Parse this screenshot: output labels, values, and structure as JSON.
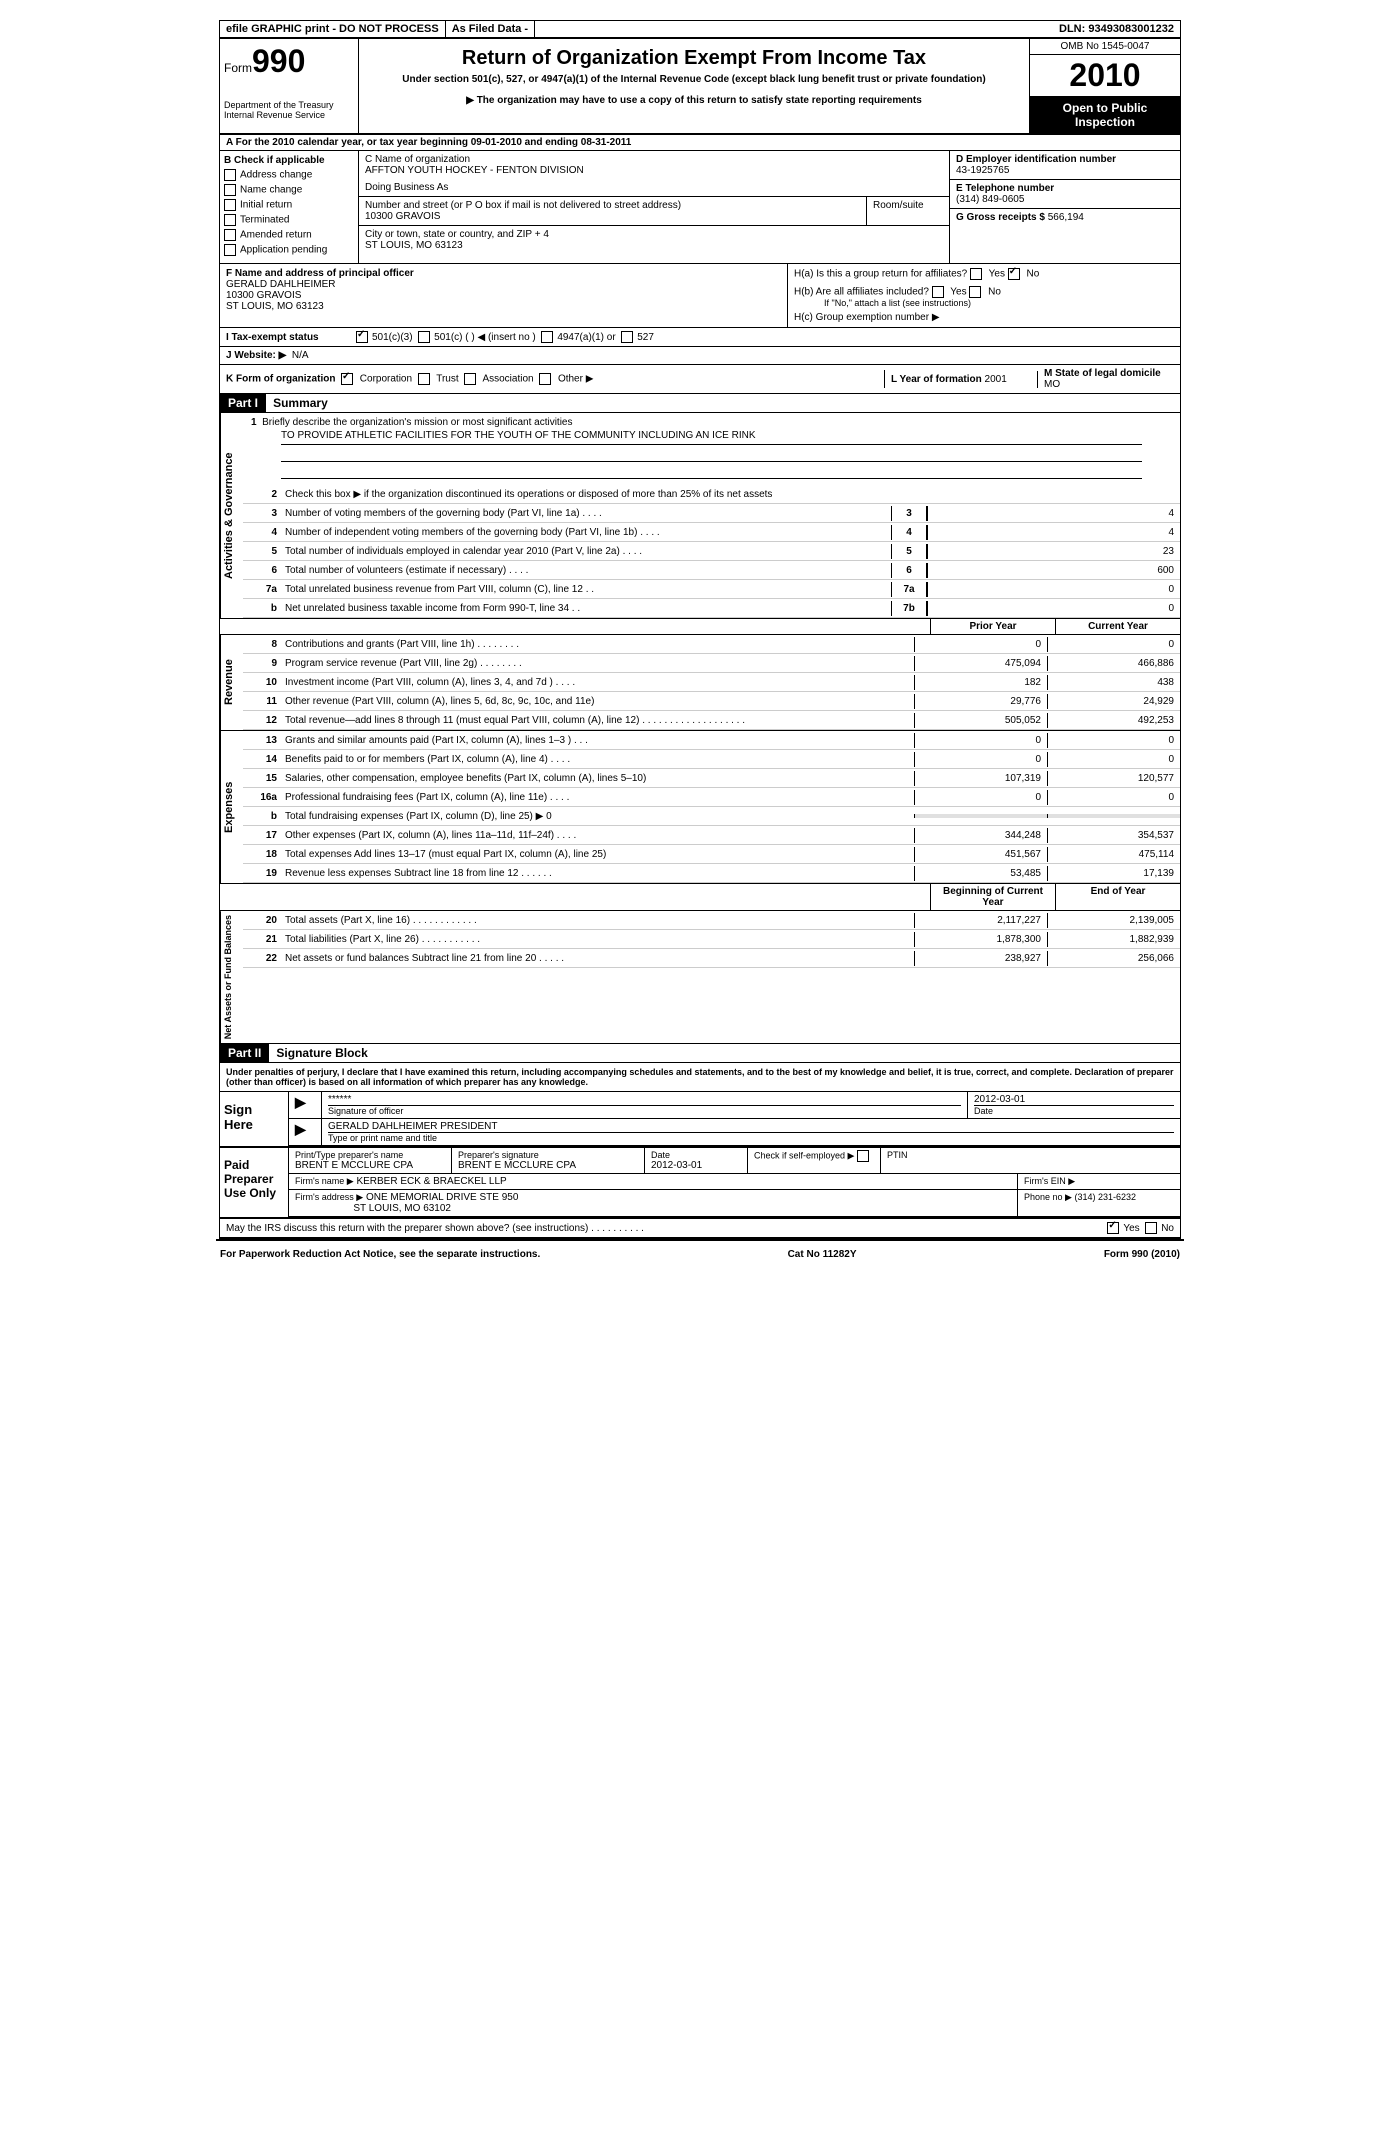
{
  "topbar": {
    "efile": "efile GRAPHIC print - DO NOT PROCESS",
    "asfiled": "As Filed Data -",
    "dln_label": "DLN:",
    "dln": "93493083001232"
  },
  "header": {
    "form_word": "Form",
    "form_num": "990",
    "dept1": "Department of the Treasury",
    "dept2": "Internal Revenue Service",
    "title": "Return of Organization Exempt From Income Tax",
    "subtitle1": "Under section 501(c), 527, or 4947(a)(1) of the Internal Revenue Code (except black lung benefit trust or private foundation)",
    "subtitle2": "▶ The organization may have to use a copy of this return to satisfy state reporting requirements",
    "omb": "OMB No 1545-0047",
    "year": "2010",
    "inspection": "Open to Public Inspection"
  },
  "section_a": "A  For the 2010 calendar year, or tax year beginning 09-01-2010    and ending 08-31-2011",
  "col_b": {
    "header": "B Check if applicable",
    "items": [
      "Address change",
      "Name change",
      "Initial return",
      "Terminated",
      "Amended return",
      "Application pending"
    ]
  },
  "col_c": {
    "name_label": "C Name of organization",
    "name": "AFFTON YOUTH HOCKEY - FENTON DIVISION",
    "dba_label": "Doing Business As",
    "dba": "",
    "street_label": "Number and street (or P O  box if mail is not delivered to street address)",
    "street": "10300 GRAVOIS",
    "room_label": "Room/suite",
    "city_label": "City or town, state or country, and ZIP + 4",
    "city": "ST LOUIS, MO  63123"
  },
  "col_d": {
    "ein_label": "D Employer identification number",
    "ein": "43-1925765",
    "tel_label": "E Telephone number",
    "tel": "(314) 849-0605",
    "gross_label": "G Gross receipts $",
    "gross": "566,194"
  },
  "f_block": {
    "label": "F   Name and address of principal officer",
    "name": "GERALD DAHLHEIMER",
    "street": "10300 GRAVOIS",
    "city": "ST LOUIS, MO  63123"
  },
  "h_block": {
    "ha": "H(a)  Is this a group return for affiliates?",
    "hb": "H(b)  Are all affiliates included?",
    "hb_note": "If \"No,\" attach a list  (see instructions)",
    "hc": "H(c)   Group exemption number ▶",
    "yes": "Yes",
    "no": "No"
  },
  "i_row": {
    "label": "I   Tax-exempt status",
    "opts": [
      "501(c)(3)",
      "501(c) (  ) ◀ (insert no )",
      "4947(a)(1) or",
      "527"
    ]
  },
  "j_row": {
    "label": "J  Website: ▶",
    "val": "N/A"
  },
  "k_row": {
    "label": "K Form of organization",
    "opts": [
      "Corporation",
      "Trust",
      "Association",
      "Other ▶"
    ],
    "l_label": "L Year of formation",
    "l_val": "2001",
    "m_label": "M State of legal domicile",
    "m_val": "MO"
  },
  "part1": {
    "header": "Part I",
    "title": "Summary",
    "vert_labels": [
      "Activities & Governance",
      "Revenue",
      "Expenses",
      "Net Assets or Fund Balances"
    ],
    "line1_label": "Briefly describe the organization's mission or most significant activities",
    "line1_val": "TO PROVIDE ATHLETIC FACILITIES FOR THE YOUTH OF THE COMMUNITY INCLUDING AN ICE RINK",
    "line2": "Check this box ▶     if the organization discontinued its operations or disposed of more than 25% of its net assets",
    "gov_lines": [
      {
        "n": "3",
        "d": "Number of voting members of the governing body (Part VI, line 1a)  .   .   .   .",
        "b": "3",
        "v": "4"
      },
      {
        "n": "4",
        "d": "Number of independent voting members of the governing body (Part VI, line 1b)  .   .   .   .",
        "b": "4",
        "v": "4"
      },
      {
        "n": "5",
        "d": "Total number of individuals employed in calendar year 2010 (Part V, line 2a)  .   .   .   .",
        "b": "5",
        "v": "23"
      },
      {
        "n": "6",
        "d": "Total number of volunteers (estimate if necessary)  .   .   .   .",
        "b": "6",
        "v": "600"
      },
      {
        "n": "7a",
        "d": "Total unrelated business revenue from Part VIII, column (C), line 12  .   .",
        "b": "7a",
        "v": "0"
      },
      {
        "n": "b",
        "d": "Net unrelated business taxable income from Form 990-T, line 34  .   .",
        "b": "7b",
        "v": "0"
      }
    ],
    "col_prior": "Prior Year",
    "col_current": "Current Year",
    "rev_lines": [
      {
        "n": "8",
        "d": "Contributions and grants (Part VIII, line 1h)  .   .   .   .   .   .   .   .",
        "p": "0",
        "c": "0"
      },
      {
        "n": "9",
        "d": "Program service revenue (Part VIII, line 2g)  .   .   .   .   .   .   .   .",
        "p": "475,094",
        "c": "466,886"
      },
      {
        "n": "10",
        "d": "Investment income (Part VIII, column (A), lines 3, 4, and 7d )  .   .   .   .",
        "p": "182",
        "c": "438"
      },
      {
        "n": "11",
        "d": "Other revenue (Part VIII, column (A), lines 5, 6d, 8c, 9c, 10c, and 11e)",
        "p": "29,776",
        "c": "24,929"
      },
      {
        "n": "12",
        "d": "Total revenue—add lines 8 through 11 (must equal Part VIII, column (A), line 12)  .   .   .   .   .   .   .   .   .   .   .   .   .   .   .   .   .   .   .",
        "p": "505,052",
        "c": "492,253"
      }
    ],
    "exp_lines": [
      {
        "n": "13",
        "d": "Grants and similar amounts paid (Part IX, column (A), lines 1–3 )  .   .   .",
        "p": "0",
        "c": "0"
      },
      {
        "n": "14",
        "d": "Benefits paid to or for members (Part IX, column (A), line 4)  .   .   .   .",
        "p": "0",
        "c": "0"
      },
      {
        "n": "15",
        "d": "Salaries, other compensation, employee benefits (Part IX, column (A), lines 5–10)",
        "p": "107,319",
        "c": "120,577"
      },
      {
        "n": "16a",
        "d": "Professional fundraising fees (Part IX, column (A), line 11e)  .   .   .   .",
        "p": "0",
        "c": "0"
      },
      {
        "n": "b",
        "d": "Total fundraising expenses (Part IX, column (D), line 25) ▶ 0",
        "p": "",
        "c": ""
      },
      {
        "n": "17",
        "d": "Other expenses (Part IX, column (A), lines 11a–11d, 11f–24f)  .   .   .   .",
        "p": "344,248",
        "c": "354,537"
      },
      {
        "n": "18",
        "d": "Total expenses  Add lines 13–17 (must equal Part IX, column (A), line 25)",
        "p": "451,567",
        "c": "475,114"
      },
      {
        "n": "19",
        "d": "Revenue less expenses  Subtract line 18 from line 12  .   .   .   .   .   .",
        "p": "53,485",
        "c": "17,139"
      }
    ],
    "col_begin": "Beginning of Current Year",
    "col_end": "End of Year",
    "net_lines": [
      {
        "n": "20",
        "d": "Total assets (Part X, line 16)  .   .   .   .   .   .   .   .   .   .   .   .",
        "p": "2,117,227",
        "c": "2,139,005"
      },
      {
        "n": "21",
        "d": "Total liabilities (Part X, line 26)  .   .   .   .   .   .   .   .   .   .   .",
        "p": "1,878,300",
        "c": "1,882,939"
      },
      {
        "n": "22",
        "d": "Net assets or fund balances  Subtract line 21 from line 20  .   .   .   .   .",
        "p": "238,927",
        "c": "256,066"
      }
    ]
  },
  "part2": {
    "header": "Part II",
    "title": "Signature Block",
    "perjury": "Under penalties of perjury, I declare that I have examined this return, including accompanying schedules and statements, and to the best of my knowledge and belief, it is true, correct, and complete. Declaration of preparer (other than officer) is based on all information of which preparer has any knowledge."
  },
  "sign": {
    "here": "Sign Here",
    "stars": "******",
    "sig_label": "Signature of officer",
    "date": "2012-03-01",
    "date_label": "Date",
    "officer": "GERALD DAHLHEIMER PRESIDENT",
    "type_label": "Type or print name and title"
  },
  "paid": {
    "label": "Paid Preparer Use Only",
    "pt_label": "Print/Type preparer's name",
    "pt_name": "BRENT E MCCLURE CPA",
    "sig_label": "Preparer's signature",
    "sig_name": "BRENT E MCCLURE CPA",
    "date_label": "Date",
    "date": "2012-03-01",
    "self_label": "Check if self-employed ▶",
    "ptin_label": "PTIN",
    "firm_name_label": "Firm's name  ▶",
    "firm_name": "KERBER ECK & BRAECKEL LLP",
    "firm_ein_label": "Firm's EIN  ▶",
    "firm_addr_label": "Firm's address ▶",
    "firm_addr1": "ONE MEMORIAL DRIVE STE 950",
    "firm_addr2": "ST LOUIS, MO  63102",
    "phone_label": "Phone no  ▶",
    "phone": "(314) 231-6232"
  },
  "discuss": {
    "text": "May the IRS discuss this return with the preparer shown above? (see instructions)  .   .   .   .   .   .   .   .   .   .",
    "yes": "Yes",
    "no": "No"
  },
  "footer": {
    "left": "For Paperwork Reduction Act Notice, see the separate instructions.",
    "center": "Cat No 11282Y",
    "right": "Form 990 (2010)"
  }
}
